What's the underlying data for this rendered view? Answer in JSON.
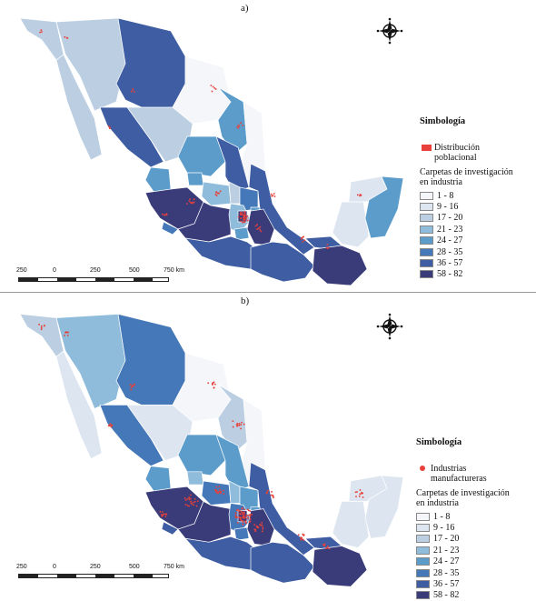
{
  "colors": {
    "classes": [
      "#f4f6fa",
      "#dde6f0",
      "#bccfe2",
      "#8fbcdb",
      "#5b9ccb",
      "#4478b8",
      "#3e5da2",
      "#3a3b79"
    ],
    "point": "#e8403a",
    "border": "#ffffff"
  },
  "icons": {
    "compass": "north-arrow-compass-icon"
  },
  "panels": [
    {
      "label": "a)",
      "legend": {
        "title": "Simbología",
        "point_label": "Distribución poblacional",
        "point_symbol": "square",
        "subtitle": "Carpetas de investigación en industria",
        "classes": [
          "1 - 8",
          "9 - 16",
          "17 - 20",
          "21 - 23",
          "24 - 27",
          "28 - 35",
          "36 - 57",
          "58 - 82"
        ]
      },
      "scale": {
        "labels": [
          "250",
          "0",
          "250",
          "500",
          "750 km"
        ]
      }
    },
    {
      "label": "b)",
      "legend": {
        "title": "Simbología",
        "point_label": "Industrias manufactureras",
        "point_symbol": "circle",
        "subtitle": "Carpetas de investigación en industria",
        "classes": [
          "1 - 8",
          "9 - 16",
          "17 - 20",
          "21 - 23",
          "24 - 27",
          "28 - 35",
          "36 - 57",
          "58 - 82"
        ]
      },
      "scale": {
        "labels": [
          "250",
          "0",
          "250",
          "500",
          "750 km"
        ]
      }
    }
  ]
}
